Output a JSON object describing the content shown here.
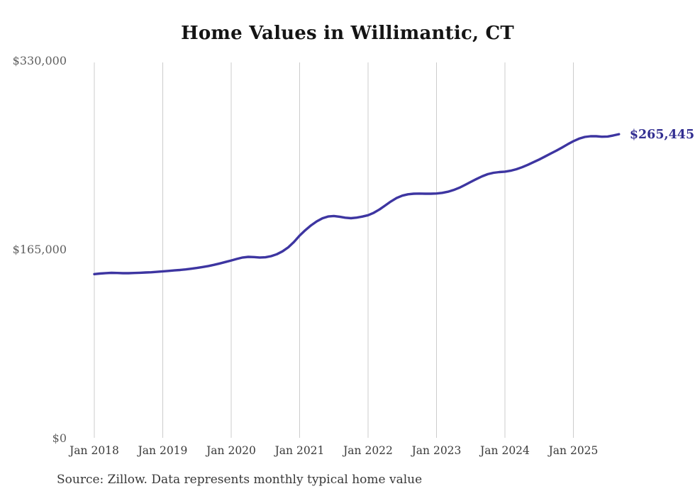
{
  "chart": {
    "title": "Home Values in Willimantic, CT",
    "source_note": "Source: Zillow. Data represents monthly typical home value",
    "end_label": "$265,445"
  },
  "chart_data": {
    "type": "line",
    "title": "Home Values in Willimantic, CT",
    "series_name": "Typical home value (monthly)",
    "frequency": "monthly",
    "start_month": "2018-01",
    "end_month": "2025-09",
    "values": [
      143100,
      143600,
      144000,
      144200,
      144100,
      143900,
      143900,
      144100,
      144300,
      144500,
      144700,
      145100,
      145500,
      145900,
      146300,
      146700,
      147200,
      147800,
      148500,
      149300,
      150200,
      151200,
      152400,
      153700,
      155000,
      156400,
      157600,
      158200,
      158000,
      157600,
      157800,
      158800,
      160500,
      163000,
      166500,
      171200,
      176800,
      181500,
      185700,
      189200,
      191900,
      193500,
      193900,
      193300,
      192400,
      192000,
      192500,
      193400,
      194600,
      196700,
      199600,
      203100,
      206600,
      209600,
      211700,
      212900,
      213400,
      213500,
      213400,
      213400,
      213600,
      214100,
      215100,
      216600,
      218600,
      221100,
      223700,
      226200,
      228600,
      230500,
      231700,
      232300,
      232700,
      233500,
      234800,
      236500,
      238600,
      240900,
      243300,
      245800,
      248400,
      251000,
      253700,
      256600,
      259300,
      261500,
      263000,
      263600,
      263600,
      263200,
      263400,
      264300,
      265445
    ],
    "x_ticks": [
      "Jan 2018",
      "Jan 2019",
      "Jan 2020",
      "Jan 2021",
      "Jan 2022",
      "Jan 2023",
      "Jan 2024",
      "Jan 2025"
    ],
    "y_ticks": [
      {
        "label": "$0",
        "value": 0
      },
      {
        "label": "$165,000",
        "value": 165000
      },
      {
        "label": "$330,000",
        "value": 330000
      }
    ],
    "ylim": [
      0,
      330000
    ],
    "end_value": 265445,
    "end_label": "$265,445",
    "legend": "none",
    "grid": "vertical-yearly",
    "colors": {
      "line": "#3d35a1",
      "end_label": "#322e91",
      "gridline": "#cccccc",
      "y_tick_text": "#5f5f5f",
      "x_tick_text": "#3a3a3a",
      "title": "#141414",
      "source": "#383838",
      "background": "#ffffff"
    }
  }
}
